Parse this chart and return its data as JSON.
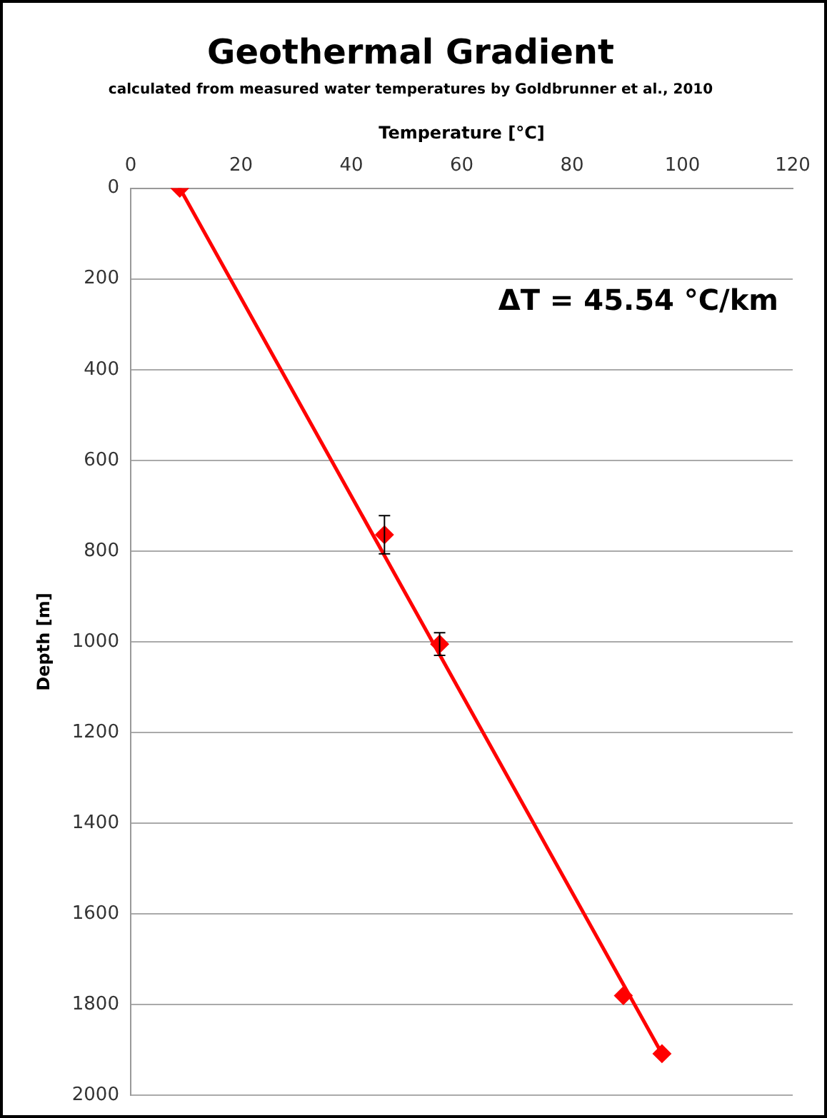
{
  "chart_data": {
    "type": "scatter",
    "title": "Geothermal Gradient",
    "subtitle": "calculated from measured water temperatures by Goldbrunner et al., 2010",
    "xlabel": "Temperature [°C]",
    "ylabel": "Depth [m]",
    "annotations": [
      "ΔT = 45.54 °C/km"
    ],
    "xlim": [
      0,
      120
    ],
    "xticks": [
      0,
      20,
      40,
      60,
      80,
      100,
      120
    ],
    "ylim": [
      2000,
      0
    ],
    "yticks": [
      0,
      200,
      400,
      600,
      800,
      1000,
      1200,
      1400,
      1600,
      1800,
      2000
    ],
    "grid": "y",
    "legend": false,
    "series": [
      {
        "type": "scatter",
        "color": "#ff0000",
        "marker": "diamond",
        "x": [
          8.9,
          46,
          56,
          89.3,
          96.3
        ],
        "values": [
          0,
          764,
          1005,
          1780,
          1908
        ],
        "errors": [
          null,
          42,
          25,
          null,
          null
        ]
      },
      {
        "type": "line",
        "color": "#ff0000",
        "line_style": "solid",
        "x": [
          8.9,
          96.3
        ],
        "values": [
          0,
          1908
        ]
      }
    ]
  }
}
